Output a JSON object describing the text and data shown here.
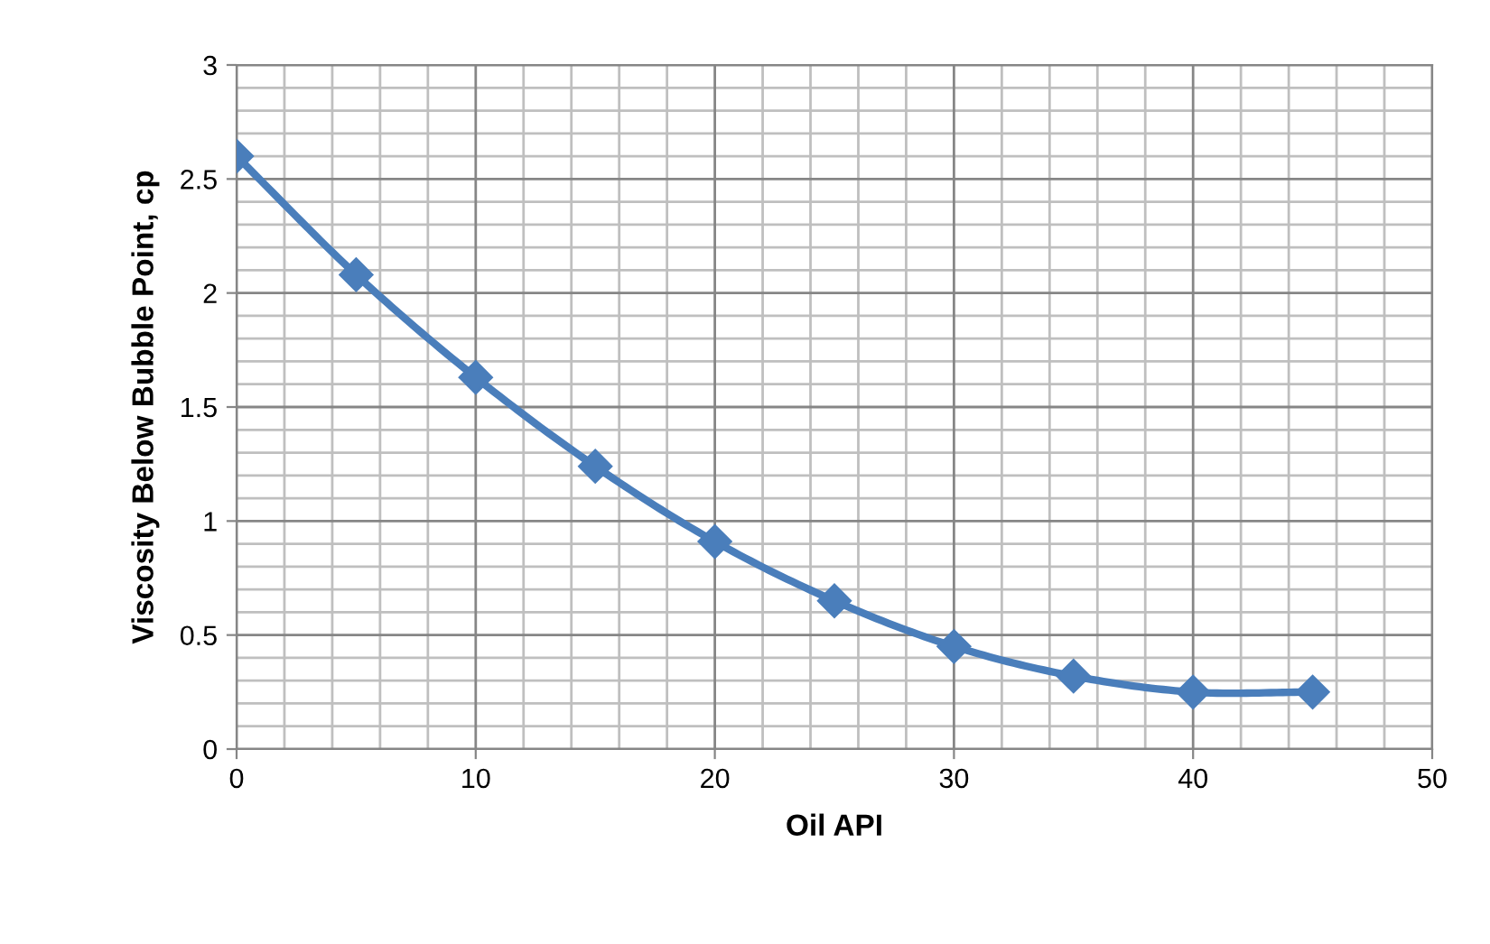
{
  "chart_data": {
    "type": "line",
    "xlabel": "Oil API",
    "ylabel": "Viscosity Below Bubble Point, cp",
    "x": [
      0,
      5,
      10,
      15,
      20,
      25,
      30,
      35,
      40,
      45
    ],
    "series": [
      {
        "color": "#4a7ebb",
        "values": [
          2.6,
          2.08,
          1.63,
          1.24,
          0.91,
          0.65,
          0.45,
          0.32,
          0.25,
          0.25
        ]
      }
    ],
    "xlim": [
      0,
      50
    ],
    "xticks": [
      0,
      10,
      20,
      30,
      40,
      50
    ],
    "ylim": [
      0,
      3
    ],
    "yticks": [
      0,
      0.5,
      1,
      1.5,
      2,
      2.5,
      3
    ],
    "grid": true,
    "marker": "diamond",
    "line_style": "solid"
  }
}
